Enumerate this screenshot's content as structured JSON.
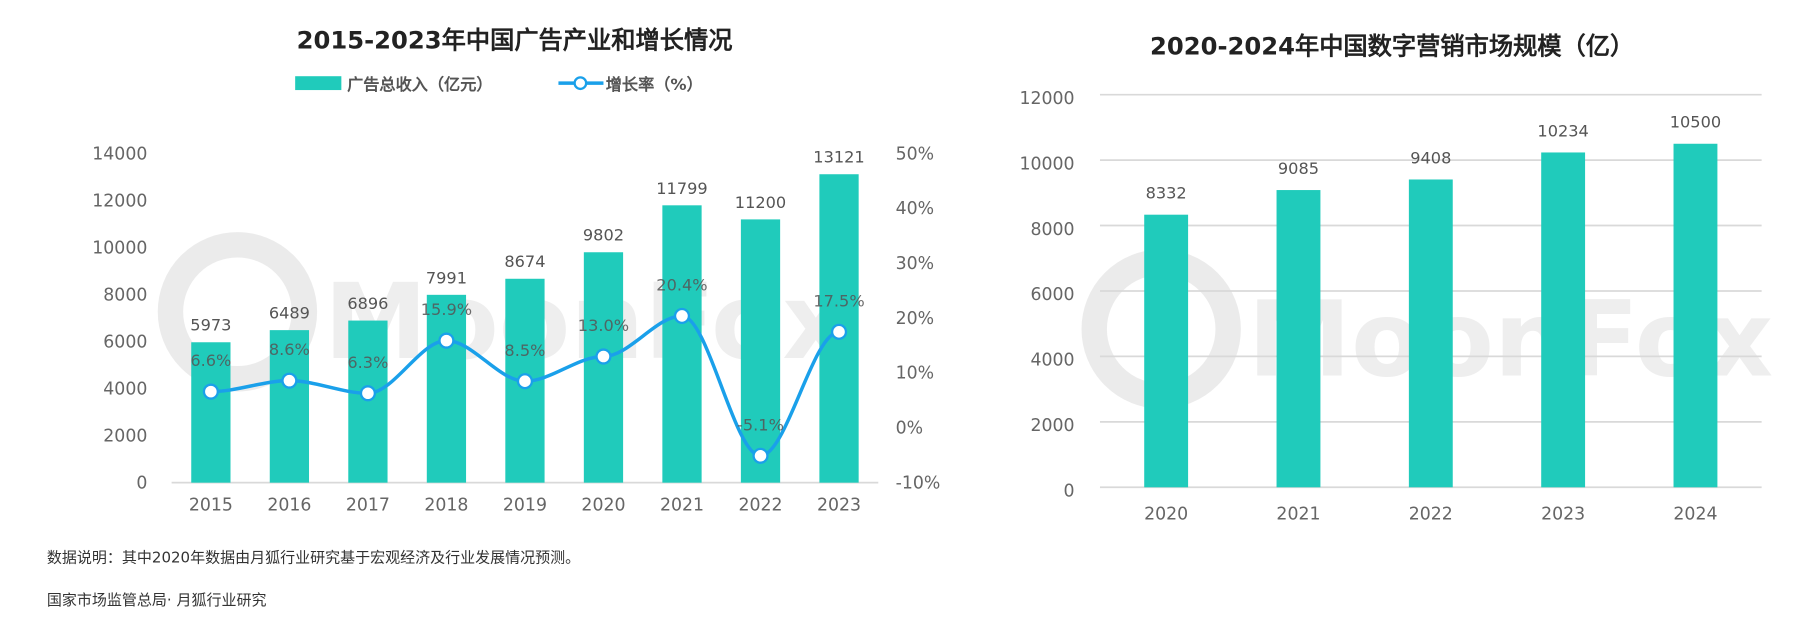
{
  "chart_data": [
    {
      "type": "bar+line",
      "title": "2015-2023年中国广告产业和增长情况",
      "legend_position": "top",
      "categories": [
        "2015",
        "2016",
        "2017",
        "2018",
        "2019",
        "2020",
        "2021",
        "2022",
        "2023"
      ],
      "series": [
        {
          "name": "广告总收入（亿元）",
          "type": "bar",
          "axis": "left",
          "color": "#20CBBB",
          "values": [
            5973,
            6489,
            6896,
            7991,
            8674,
            9802,
            11799,
            11200,
            13121
          ],
          "labels": [
            "5973",
            "6489",
            "6896",
            "7991",
            "8674",
            "9802",
            "11799",
            "11200",
            "13121"
          ]
        },
        {
          "name": "增长率（%）",
          "type": "line",
          "axis": "right",
          "color": "#1AA0EA",
          "values": [
            6.6,
            8.6,
            6.3,
            15.9,
            8.5,
            13.0,
            20.4,
            -5.1,
            17.5
          ],
          "labels": [
            "6.6%",
            "8.6%",
            "6.3%",
            "15.9%",
            "8.5%",
            "13.0%",
            "20.4%",
            "-5.1%",
            "17.5%"
          ]
        }
      ],
      "y_left": {
        "range": [
          0,
          14000
        ],
        "ticks": [
          "0",
          "2000",
          "4000",
          "6000",
          "8000",
          "10000",
          "12000",
          "14000"
        ]
      },
      "y_right": {
        "range": [
          -10,
          50
        ],
        "ticks": [
          "-10%",
          "0%",
          "10%",
          "20%",
          "30%",
          "40%",
          "50%"
        ]
      },
      "grid": false
    },
    {
      "type": "bar",
      "title": "2020-2024年中国数字营销市场规模（亿）",
      "categories": [
        "2020",
        "2021",
        "2022",
        "2023",
        "2024"
      ],
      "values": [
        8332,
        9085,
        9408,
        10234,
        10500
      ],
      "labels": [
        "8332",
        "9085",
        "9408",
        "10234",
        "10500"
      ],
      "color": "#20CBBB",
      "ylim": [
        0,
        12000
      ],
      "yticks": [
        "0",
        "2000",
        "4000",
        "6000",
        "8000",
        "10000",
        "12000"
      ],
      "grid": true
    }
  ],
  "footnotes": {
    "note": "数据说明：其中2020年数据由月狐行业研究基于宏观经济及行业发展情况预测。",
    "source": "国家市场监管总局· 月狐行业研究"
  },
  "watermark": "MoonFox"
}
